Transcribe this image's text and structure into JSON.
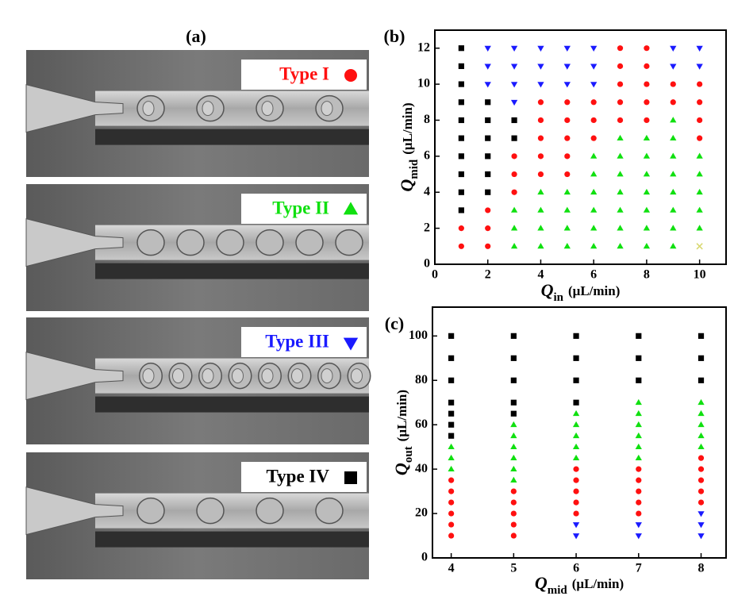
{
  "panel_a": {
    "label": "(a)"
  },
  "chart_data": [
    {
      "type": "scatter",
      "label": "(b)",
      "x_label": {
        "symbol": "Q",
        "sub": "in",
        "unit": "(μL/min)"
      },
      "y_label": {
        "symbol": "Q",
        "sub": "mid",
        "unit": "(μL/min)"
      },
      "xlim": [
        0,
        11
      ],
      "ylim": [
        0,
        13
      ],
      "xticks": [
        0,
        2,
        4,
        6,
        8,
        10
      ],
      "yticks": [
        0,
        2,
        4,
        6,
        8,
        10,
        12
      ],
      "series": [
        {
          "name": "Type I",
          "color": "#ff1010",
          "marker": "circle",
          "x": [
            1,
            1,
            2,
            2,
            2,
            3,
            3,
            3,
            4,
            4,
            4,
            4,
            4,
            5,
            5,
            5,
            5,
            5,
            6,
            6,
            6,
            7,
            7,
            7,
            7,
            7,
            8,
            8,
            8,
            8,
            8,
            9,
            9,
            10,
            10,
            10,
            10
          ],
          "y": [
            1,
            2,
            1,
            2,
            3,
            4,
            5,
            6,
            5,
            6,
            7,
            8,
            9,
            5,
            6,
            7,
            8,
            9,
            7,
            8,
            9,
            8,
            9,
            10,
            11,
            12,
            8,
            9,
            10,
            11,
            12,
            9,
            10,
            7,
            8,
            9,
            10
          ]
        },
        {
          "name": "Type II",
          "color": "#10e010",
          "marker": "triangle-up",
          "x": [
            3,
            3,
            3,
            4,
            4,
            4,
            4,
            5,
            5,
            5,
            5,
            6,
            6,
            6,
            6,
            6,
            6,
            7,
            7,
            7,
            7,
            7,
            7,
            7,
            8,
            8,
            8,
            8,
            8,
            8,
            8,
            9,
            9,
            9,
            9,
            9,
            9,
            9,
            9,
            10,
            10,
            10,
            10,
            10
          ],
          "y": [
            1,
            2,
            3,
            1,
            2,
            3,
            4,
            1,
            2,
            3,
            4,
            1,
            2,
            3,
            4,
            5,
            6,
            1,
            2,
            3,
            4,
            5,
            6,
            7,
            1,
            2,
            3,
            4,
            5,
            6,
            7,
            1,
            2,
            3,
            4,
            5,
            6,
            7,
            8,
            2,
            3,
            4,
            5,
            6
          ]
        },
        {
          "name": "Type III",
          "color": "#1a1aff",
          "marker": "triangle-down",
          "x": [
            2,
            2,
            2,
            3,
            3,
            3,
            3,
            4,
            4,
            4,
            5,
            5,
            5,
            6,
            6,
            6,
            9,
            9,
            10,
            10
          ],
          "y": [
            10,
            11,
            12,
            9,
            10,
            11,
            12,
            10,
            11,
            12,
            10,
            11,
            12,
            10,
            11,
            12,
            11,
            12,
            11,
            12
          ]
        },
        {
          "name": "Type IV",
          "color": "#000000",
          "marker": "square",
          "x": [
            1,
            1,
            1,
            1,
            1,
            1,
            1,
            1,
            1,
            1,
            2,
            2,
            2,
            2,
            2,
            2,
            3,
            3
          ],
          "y": [
            3,
            4,
            5,
            6,
            7,
            8,
            9,
            10,
            11,
            12,
            4,
            5,
            6,
            7,
            8,
            9,
            7,
            8
          ]
        },
        {
          "color": "#d8d870",
          "marker": "x",
          "x": [
            10
          ],
          "y": [
            1
          ]
        }
      ]
    },
    {
      "type": "scatter",
      "label": "(c)",
      "x_label": {
        "symbol": "Q",
        "sub": "mid",
        "unit": "(μL/min)"
      },
      "y_label": {
        "symbol": "Q",
        "sub": "out",
        "unit": "(μL/min)"
      },
      "xlim": [
        3.7,
        8.4
      ],
      "ylim": [
        0,
        113
      ],
      "xticks": [
        4,
        5,
        6,
        7,
        8
      ],
      "yticks": [
        0,
        20,
        40,
        60,
        80,
        100
      ],
      "series": [
        {
          "color": "#ff1010",
          "marker": "circle",
          "x": [
            4,
            4,
            4,
            4,
            4,
            4,
            5,
            5,
            5,
            5,
            5,
            6,
            6,
            6,
            6,
            6,
            7,
            7,
            7,
            7,
            7,
            8,
            8,
            8,
            8,
            8
          ],
          "y": [
            10,
            15,
            20,
            25,
            30,
            35,
            10,
            15,
            20,
            25,
            30,
            20,
            25,
            30,
            35,
            40,
            20,
            25,
            30,
            35,
            40,
            25,
            30,
            35,
            40,
            45
          ]
        },
        {
          "color": "#10e010",
          "marker": "triangle-up",
          "x": [
            4,
            4,
            4,
            5,
            5,
            5,
            5,
            5,
            5,
            6,
            6,
            6,
            6,
            6,
            7,
            7,
            7,
            7,
            7,
            7,
            8,
            8,
            8,
            8,
            8
          ],
          "y": [
            40,
            45,
            50,
            35,
            40,
            45,
            50,
            55,
            60,
            45,
            50,
            55,
            60,
            65,
            45,
            50,
            55,
            60,
            65,
            70,
            50,
            55,
            60,
            65,
            70
          ]
        },
        {
          "color": "#1a1aff",
          "marker": "triangle-down",
          "x": [
            6,
            6,
            7,
            7,
            8,
            8,
            8
          ],
          "y": [
            10,
            15,
            10,
            15,
            10,
            15,
            20
          ]
        },
        {
          "color": "#000000",
          "marker": "square",
          "x": [
            4,
            4,
            4,
            4,
            4,
            4,
            4,
            5,
            5,
            5,
            5,
            5,
            6,
            6,
            6,
            6,
            7,
            7,
            7,
            8,
            8,
            8
          ],
          "y": [
            55,
            60,
            65,
            70,
            80,
            90,
            100,
            65,
            70,
            80,
            90,
            100,
            70,
            80,
            90,
            100,
            80,
            90,
            100,
            80,
            90,
            100
          ]
        }
      ]
    }
  ]
}
